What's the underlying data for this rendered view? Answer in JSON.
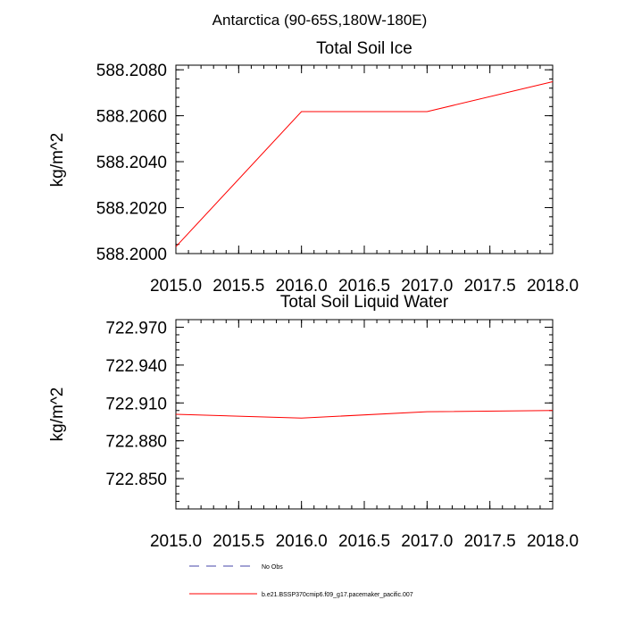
{
  "figure": {
    "title": "Antarctica (90-65S,180W-180E)"
  },
  "chart_data": [
    {
      "type": "line",
      "title": "Total Soil Ice",
      "xlabel": "",
      "ylabel": "kg/m^2",
      "xlim": [
        2015.0,
        2018.0
      ],
      "ylim": [
        588.2,
        588.2082
      ],
      "x_ticks": [
        "2015.0",
        "2015.5",
        "2016.0",
        "2016.5",
        "2017.0",
        "2017.5",
        "2018.0"
      ],
      "y_ticks": [
        "588.2000",
        "588.2020",
        "588.2040",
        "588.2060",
        "588.2080"
      ],
      "x": [
        2015.0,
        2016.0,
        2017.0,
        2018.0
      ],
      "series": [
        {
          "values": [
            588.2003,
            588.20618,
            588.20618,
            588.20748
          ],
          "color": "#ff0000"
        }
      ],
      "grid": false
    },
    {
      "type": "line",
      "title": "Total Soil Liquid Water",
      "xlabel": "",
      "ylabel": "kg/m^2",
      "xlim": [
        2015.0,
        2018.0
      ],
      "ylim": [
        722.826,
        722.976
      ],
      "x_ticks": [
        "2015.0",
        "2015.5",
        "2016.0",
        "2016.5",
        "2017.0",
        "2017.5",
        "2018.0"
      ],
      "y_ticks": [
        "722.850",
        "722.880",
        "722.910",
        "722.940",
        "722.970"
      ],
      "x": [
        2015.0,
        2016.0,
        2017.0,
        2018.0
      ],
      "series": [
        {
          "values": [
            722.901,
            722.898,
            722.903,
            722.904
          ],
          "color": "#ff0000"
        }
      ],
      "grid": false
    }
  ],
  "legend": {
    "entries": [
      {
        "label": "No Obs",
        "color": "#4444aa",
        "dash": "dashed"
      },
      {
        "label": "b.e21.BSSP370cmip6.f09_g17.pacemaker_pacific.007",
        "color": "#ff0000",
        "dash": "solid"
      }
    ]
  }
}
